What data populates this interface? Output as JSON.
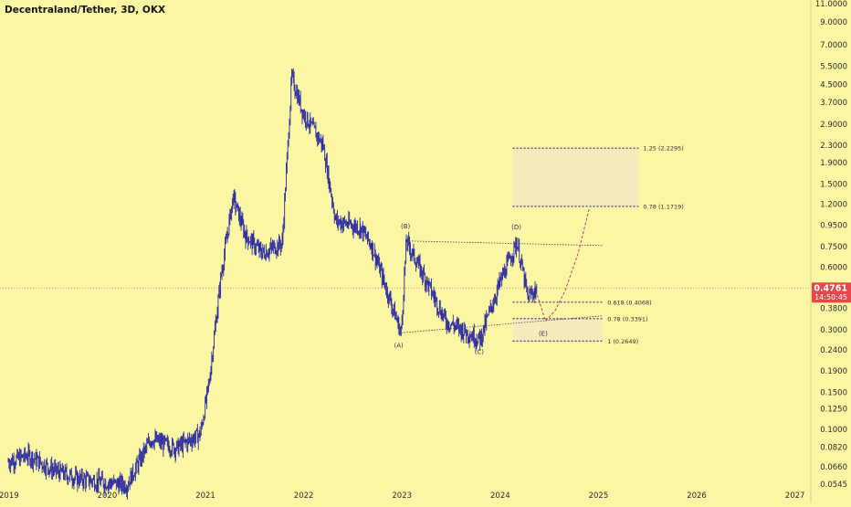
{
  "title": "Decentraland/Tether, 3D, OKX",
  "colors": {
    "background": "#fbf6a4",
    "candles": "#2828a0",
    "price_line": "#e05050",
    "price_badge": "#e8474b",
    "zone_fill": "#f3e9c2",
    "projection": "#c23b6b"
  },
  "price_badge": {
    "price": "0.4761",
    "countdown": "14:50:45"
  },
  "chart_data": {
    "type": "candlestick",
    "scale": "log",
    "x_ticks": [
      "2019",
      "2020",
      "2021",
      "2022",
      "2023",
      "2024",
      "2025",
      "2026",
      "2027"
    ],
    "y_ticks": [
      "11.0000",
      "9.0000",
      "7.0000",
      "5.5000",
      "4.5000",
      "3.7000",
      "2.9000",
      "2.3000",
      "1.9000",
      "1.5000",
      "1.2000",
      "0.9500",
      "0.7500",
      "0.6000",
      "0.4761",
      "0.3800",
      "0.3000",
      "0.2400",
      "0.1900",
      "0.1500",
      "0.1250",
      "0.1000",
      "0.0820",
      "0.0660",
      "0.0545"
    ],
    "price_path": [
      [
        "2019-01-01",
        0.07
      ],
      [
        "2019-03-15",
        0.075
      ],
      [
        "2019-06-15",
        0.064
      ],
      [
        "2019-09-15",
        0.058
      ],
      [
        "2020-03-15",
        0.054
      ],
      [
        "2020-06-15",
        0.09
      ],
      [
        "2020-09-15",
        0.081
      ],
      [
        "2020-12-15",
        0.095
      ],
      [
        "2021-01-15",
        0.16
      ],
      [
        "2021-03-01",
        0.55
      ],
      [
        "2021-04-15",
        1.3
      ],
      [
        "2021-06-01",
        0.85
      ],
      [
        "2021-08-01",
        0.7
      ],
      [
        "2021-10-15",
        0.78
      ],
      [
        "2021-11-20",
        4.9
      ],
      [
        "2022-01-01",
        3.3
      ],
      [
        "2022-03-15",
        2.3
      ],
      [
        "2022-05-01",
        1.0
      ],
      [
        "2022-08-01",
        0.93
      ],
      [
        "2022-09-15",
        0.75
      ],
      [
        "2022-12-31",
        0.29
      ],
      [
        "2023-01-20",
        0.8
      ],
      [
        "2023-04-01",
        0.52
      ],
      [
        "2023-06-15",
        0.33
      ],
      [
        "2023-10-20",
        0.27
      ],
      [
        "2024-01-01",
        0.5
      ],
      [
        "2024-03-05",
        0.79
      ],
      [
        "2024-04-15",
        0.43
      ],
      [
        "2024-05-20",
        0.4761
      ]
    ],
    "fib_levels": [
      {
        "label": "1.25 (2.2295)",
        "value": 2.2295
      },
      {
        "label": "0.78 (1.1719)",
        "value": 1.1719
      },
      {
        "label": "0.618 (0.4068)",
        "value": 0.4068
      },
      {
        "label": "0.78 (0.3391)",
        "value": 0.3391
      },
      {
        "label": "1 (0.2649)",
        "value": 0.2649
      }
    ],
    "wave_labels": [
      {
        "label": "(A)",
        "date": "2022-12-25",
        "value": 0.29
      },
      {
        "label": "(B)",
        "date": "2023-01-20",
        "value": 0.8
      },
      {
        "label": "(C)",
        "date": "2023-10-20",
        "value": 0.27
      },
      {
        "label": "(D)",
        "date": "2024-03-05",
        "value": 0.79
      },
      {
        "label": "(E)",
        "date": "2024-06-15",
        "value": 0.33
      }
    ],
    "trendlines": [
      {
        "from": [
          "2023-01-20",
          0.8
        ],
        "to": [
          "2025-01-20",
          0.76
        ]
      },
      {
        "from": [
          "2022-12-31",
          0.29
        ],
        "to": [
          "2025-01-20",
          0.35
        ]
      }
    ],
    "projection": [
      [
        "2024-05-20",
        0.44
      ],
      [
        "2024-06-20",
        0.33
      ],
      [
        "2024-07-25",
        0.37
      ],
      [
        "2024-09-01",
        0.46
      ],
      [
        "2024-10-20",
        0.7
      ],
      [
        "2024-12-01",
        1.16
      ]
    ],
    "zones": [
      {
        "from": "2024-02-20",
        "to": "2025-06-01",
        "low": 1.1719,
        "high": 2.2295
      },
      {
        "from": "2024-02-20",
        "to": "2025-01-20",
        "low": 0.2649,
        "high": 0.3391
      }
    ]
  }
}
